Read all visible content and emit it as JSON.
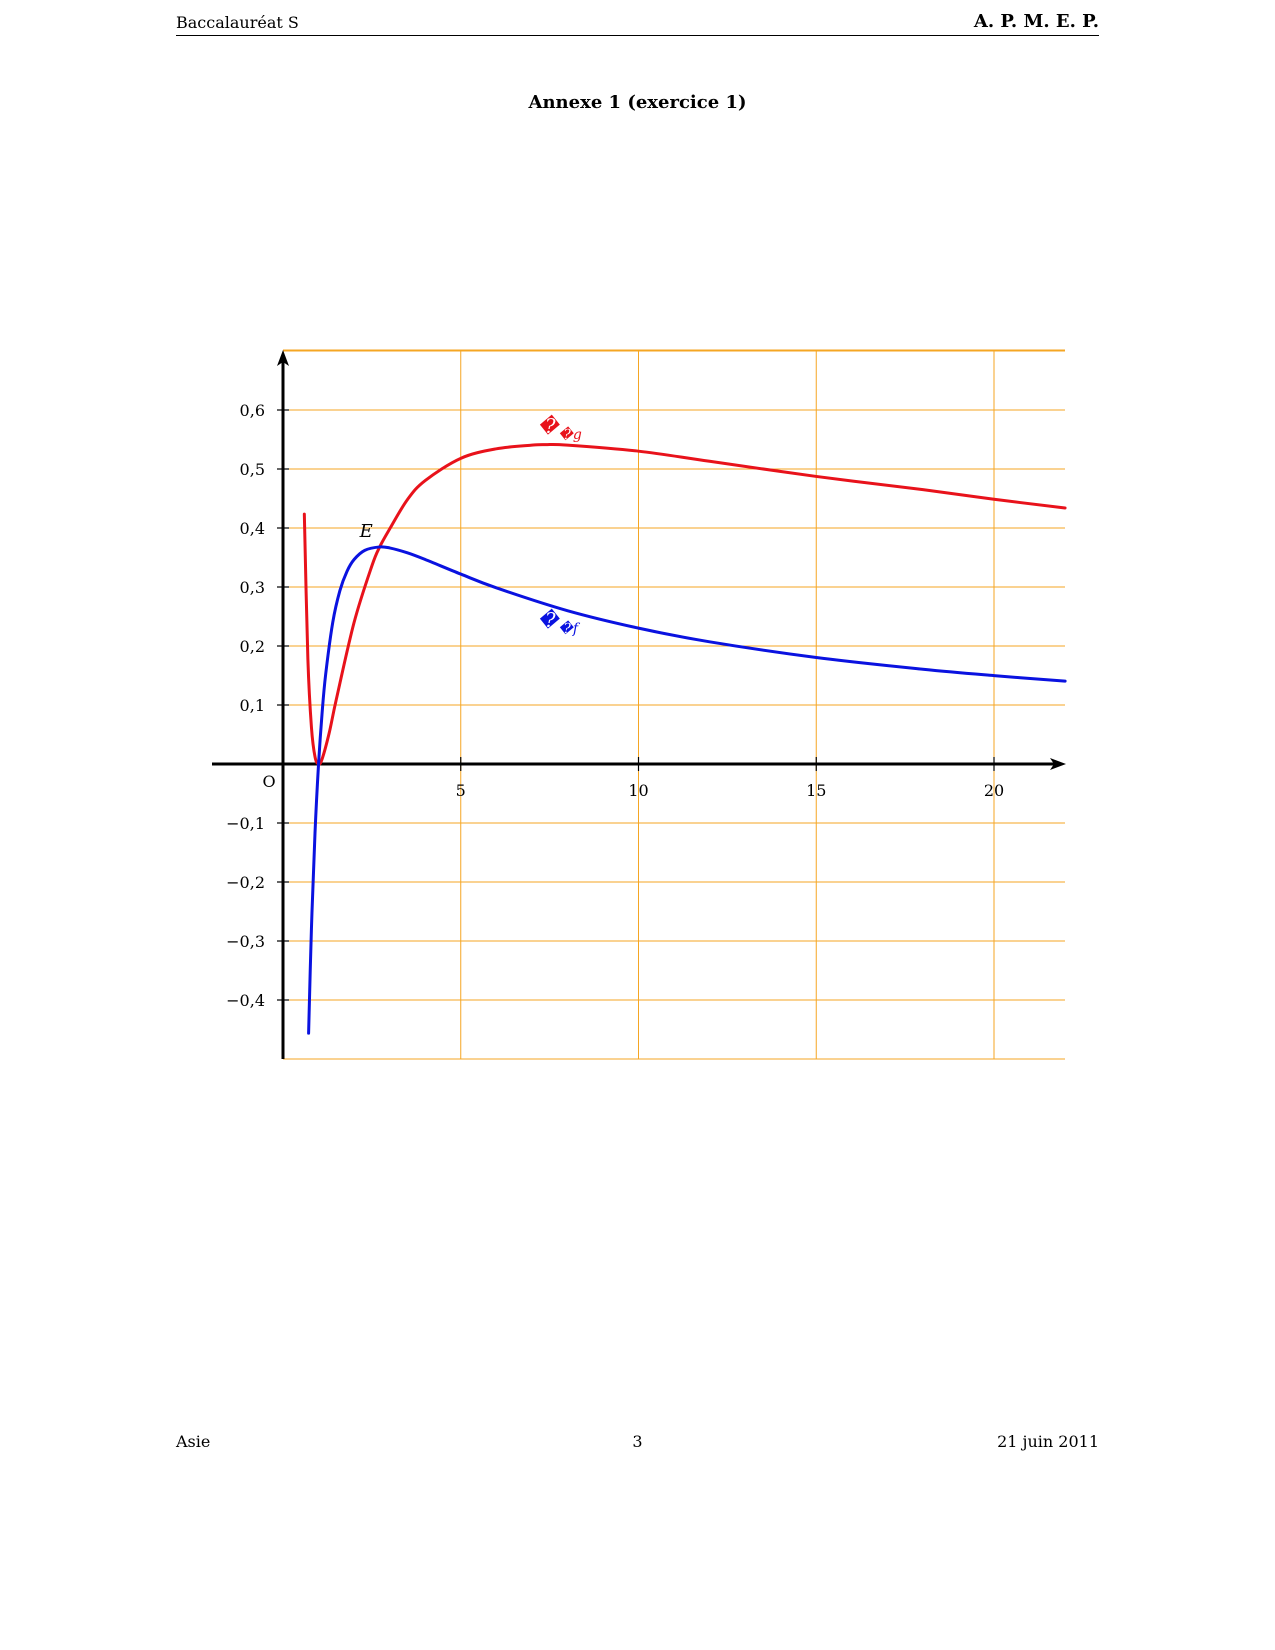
{
  "header": {
    "left": "Baccalauréat S",
    "right": "A. P. M. E. P."
  },
  "title": "Annexe 1 (exercice 1)",
  "footer": {
    "left": "Asie",
    "center": "3",
    "right": "21 juin 2011"
  },
  "colors": {
    "grid": "#f5a623",
    "curve_g": "#e8121b",
    "curve_f": "#0a12e0",
    "axis": "#000000"
  },
  "chart_data": {
    "type": "line",
    "title": "",
    "xlabel": "",
    "ylabel": "",
    "xlim": [
      -0.4,
      22
    ],
    "ylim": [
      -0.5,
      0.7
    ],
    "origin_label": "O",
    "x_ticks": [
      5,
      10,
      15,
      20
    ],
    "x_tick_labels": [
      "5",
      "10",
      "15",
      "20"
    ],
    "y_ticks": [
      -0.4,
      -0.3,
      -0.2,
      -0.1,
      0.1,
      0.2,
      0.3,
      0.4,
      0.5,
      0.6
    ],
    "y_tick_labels": [
      "−0,4",
      "−0,3",
      "−0,2",
      "−0,1",
      "0,1",
      "0,2",
      "0,3",
      "0,4",
      "0,5",
      "0,6"
    ],
    "grid": true,
    "series": [
      {
        "name": "𝒞g",
        "color": "#e8121b",
        "x": [
          0.6,
          0.7,
          0.8,
          0.9,
          1.0,
          1.1,
          1.3,
          1.5,
          2.0,
          2.5,
          2.72,
          3.0,
          3.5,
          4.0,
          5.0,
          6.0,
          7.0,
          7.39,
          8.0,
          10.0,
          12.0,
          15.0,
          18.0,
          20.0,
          22.0
        ],
        "y": [
          0.4235,
          0.1776,
          0.0622,
          0.0123,
          0.0,
          0.0085,
          0.0527,
          0.1096,
          0.24,
          0.3358,
          0.3679,
          0.3983,
          0.4481,
          0.4804,
          0.5181,
          0.5342,
          0.5404,
          0.5413,
          0.5405,
          0.5302,
          0.5131,
          0.4874,
          0.465,
          0.4487,
          0.4339
        ],
        "label": "𝒞g"
      },
      {
        "name": "𝒞f",
        "color": "#0a12e0",
        "x": [
          0.72,
          0.8,
          0.9,
          1.0,
          1.1,
          1.2,
          1.4,
          1.6,
          1.8,
          2.0,
          2.3,
          2.718,
          3.0,
          3.5,
          4.0,
          5.0,
          6.0,
          8.0,
          10.0,
          12.0,
          15.0,
          18.0,
          20.0,
          22.0
        ],
        "y": [
          -0.4562,
          -0.2789,
          -0.1171,
          0.0,
          0.0866,
          0.1519,
          0.2403,
          0.2938,
          0.3265,
          0.3466,
          0.3621,
          0.3679,
          0.3662,
          0.3579,
          0.3466,
          0.3219,
          0.2986,
          0.2599,
          0.2303,
          0.2071,
          0.1805,
          0.1606,
          0.1498,
          0.1405
        ],
        "label": "𝒞f"
      }
    ],
    "annotations": [
      {
        "text": "E",
        "x": 2.718,
        "y": 0.3679
      }
    ]
  }
}
